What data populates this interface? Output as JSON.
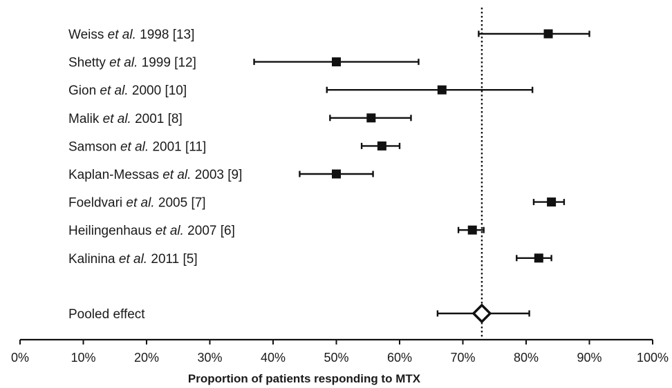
{
  "chart_data": {
    "type": "forest",
    "xlabel": "Proportion of patients responding to MTX",
    "xlim": [
      0,
      100
    ],
    "x_ticks": [
      "0%",
      "10%",
      "20%",
      "30%",
      "40%",
      "50%",
      "60%",
      "70%",
      "80%",
      "90%",
      "100%"
    ],
    "reference_line": 73,
    "studies": [
      {
        "label_pre": "Weiss ",
        "label_etal": "et al.",
        "label_post": " 1998 [13]",
        "estimate": 83.5,
        "ci_low": 72.5,
        "ci_high": 90
      },
      {
        "label_pre": "Shetty ",
        "label_etal": "et al.",
        "label_post": " 1999  [12]",
        "estimate": 50,
        "ci_low": 37,
        "ci_high": 63
      },
      {
        "label_pre": "Gion ",
        "label_etal": "et al.",
        "label_post": " 2000  [10]",
        "estimate": 66.7,
        "ci_low": 48.5,
        "ci_high": 81
      },
      {
        "label_pre": "Malik ",
        "label_etal": "et al.",
        "label_post": " 2001  [8]",
        "estimate": 55.5,
        "ci_low": 49,
        "ci_high": 61.8
      },
      {
        "label_pre": "Samson ",
        "label_etal": "et al.",
        "label_post": " 2001  [11]",
        "estimate": 57.2,
        "ci_low": 54,
        "ci_high": 60
      },
      {
        "label_pre": "Kaplan-Messas ",
        "label_etal": "et al.",
        "label_post": " 2003  [9]",
        "estimate": 50,
        "ci_low": 44.2,
        "ci_high": 55.8
      },
      {
        "label_pre": "Foeldvari ",
        "label_etal": "et al.",
        "label_post": " 2005  [7]",
        "estimate": 84,
        "ci_low": 81.2,
        "ci_high": 86
      },
      {
        "label_pre": "Heilingenhaus ",
        "label_etal": "et al.",
        "label_post": " 2007  [6]",
        "estimate": 71.5,
        "ci_low": 69.3,
        "ci_high": 73.3
      },
      {
        "label_pre": "Kalinina ",
        "label_etal": "et al.",
        "label_post": " 2011  [5]",
        "estimate": 82,
        "ci_low": 78.5,
        "ci_high": 84
      }
    ],
    "pooled": {
      "label": "Pooled effect",
      "estimate": 73,
      "ci_low": 66,
      "ci_high": 80.5
    }
  }
}
